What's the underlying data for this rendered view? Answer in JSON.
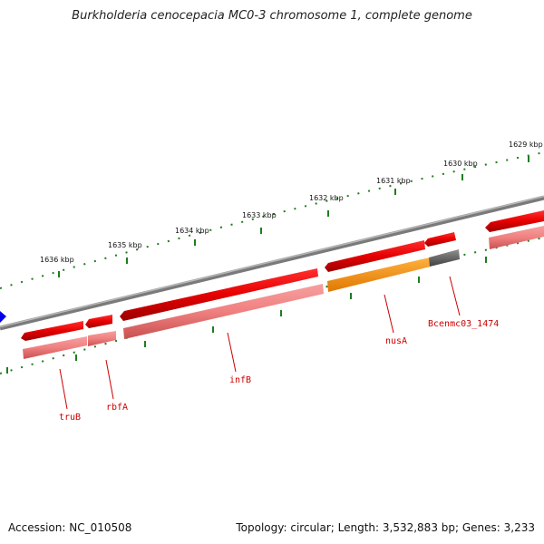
{
  "title": "Burkholderia cenocepacia MC0-3 chromosome 1, complete genome",
  "footer": {
    "accession": "Accession: NC_010508",
    "summary": "Topology: circular; Length: 3,532,883 bp; Genes: 3,233"
  },
  "colors": {
    "backbone": "#808080",
    "tick": "#1e7d1e",
    "cds_strand": "#e60000",
    "cds_light": "#f08080",
    "cds_highlight": "#ff8c00",
    "gene_gray": "#606060",
    "label": "#cc0000",
    "marker": "#0000ee"
  },
  "scale_labels": [
    "1636 kbp",
    "1635 kbp",
    "1634 kbp",
    "1633 kbp",
    "1632 kbp",
    "1631 kbp",
    "1630 kbp",
    "1629 kbp"
  ],
  "gene_labels": [
    "truB",
    "rbfA",
    "infB",
    "nusA",
    "Bcenmc03_1474"
  ]
}
